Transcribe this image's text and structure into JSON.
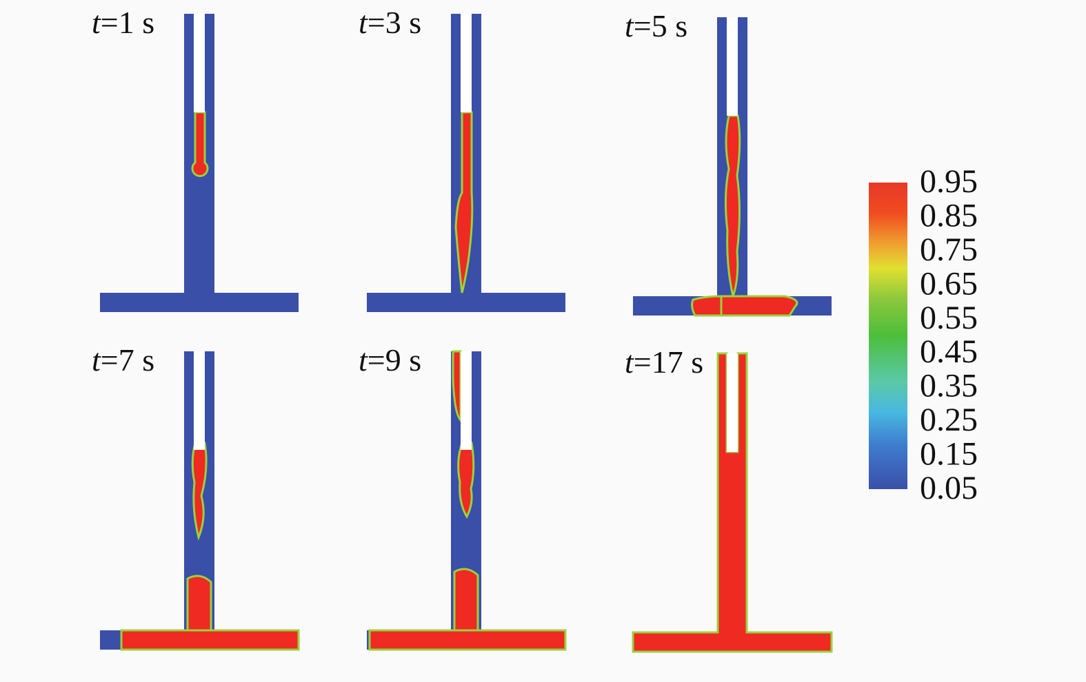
{
  "panels": [
    {
      "symbol": "t",
      "label": "=1 s"
    },
    {
      "symbol": "t",
      "label": "=3 s"
    },
    {
      "symbol": "t",
      "label": "=5 s"
    },
    {
      "symbol": "t",
      "label": "=7 s"
    },
    {
      "symbol": "t",
      "label": "=9 s"
    },
    {
      "symbol": "t",
      "label": "=17 s"
    }
  ],
  "colorbar": {
    "ticks": [
      0.95,
      0.85,
      0.75,
      0.65,
      0.55,
      0.45,
      0.35,
      0.25,
      0.15,
      0.05
    ],
    "range": [
      0.05,
      0.95
    ]
  }
}
